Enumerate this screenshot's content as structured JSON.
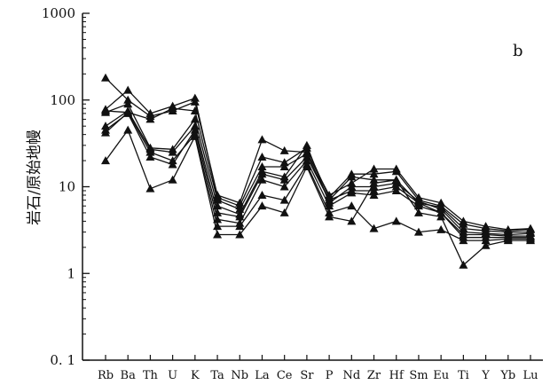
{
  "chart_data": {
    "type": "line",
    "scale_y": "log",
    "ylim": [
      0.1,
      1000
    ],
    "ylabel": "岩石/原始地幔",
    "panel_label": "b",
    "grid": false,
    "legend": "none",
    "y_ticks": [
      {
        "value": 1000,
        "label": "1000"
      },
      {
        "value": 100,
        "label": "100"
      },
      {
        "value": 10,
        "label": "10"
      },
      {
        "value": 1,
        "label": "1"
      },
      {
        "value": 0.1,
        "label": "0. 1"
      }
    ],
    "categories": [
      "Rb",
      "Ba",
      "Th",
      "U",
      "K",
      "Ta",
      "Nb",
      "La",
      "Ce",
      "Sr",
      "P",
      "Nd",
      "Zr",
      "Hf",
      "Sm",
      "Eu",
      "Ti",
      "Y",
      "Yb",
      "Lu"
    ],
    "marker": "triangle",
    "color": "#111111",
    "series": [
      {
        "values": [
          180,
          100,
          65,
          75,
          95,
          8,
          6.5,
          35,
          26,
          25,
          8,
          11,
          16,
          16,
          7.5,
          6.5,
          4,
          3.5,
          3.2,
          3.3
        ]
      },
      {
        "values": [
          78,
          130,
          70,
          85,
          105,
          7.5,
          6,
          22,
          19,
          28,
          7.5,
          14,
          14,
          15,
          7,
          6,
          3.7,
          3.3,
          3.1,
          3.2
        ]
      },
      {
        "values": [
          75,
          72,
          60,
          80,
          75,
          7,
          5.5,
          17,
          17,
          24,
          7,
          13,
          12,
          12,
          6.5,
          5.8,
          3.3,
          3.1,
          3,
          3
        ]
      },
      {
        "values": [
          72,
          90,
          28,
          27,
          60,
          6,
          4.8,
          15,
          13,
          30,
          6.5,
          10,
          10,
          11,
          6.8,
          5.5,
          3,
          2.9,
          2.8,
          2.9
        ]
      },
      {
        "values": [
          50,
          75,
          27,
          25,
          50,
          5,
          4.5,
          14,
          12,
          22,
          7,
          9,
          9,
          10,
          6.5,
          5,
          2.8,
          2.8,
          2.7,
          2.7
        ]
      },
      {
        "values": [
          45,
          70,
          22,
          18,
          45,
          4.2,
          3.8,
          12,
          10,
          20,
          6,
          8.5,
          8,
          9,
          6,
          5,
          2.6,
          2.6,
          2.6,
          2.6
        ]
      },
      {
        "values": [
          42,
          72,
          25,
          20,
          40,
          3.5,
          3.5,
          8,
          7,
          18,
          5,
          6,
          3.3,
          4,
          3,
          3.2,
          2.4,
          2.4,
          2.5,
          2.5
        ]
      },
      {
        "values": [
          20,
          45,
          9.5,
          12,
          38,
          2.8,
          2.8,
          6,
          5,
          17,
          4.5,
          4,
          11,
          12,
          5,
          4.5,
          1.25,
          2.1,
          2.4,
          2.4
        ]
      }
    ]
  }
}
